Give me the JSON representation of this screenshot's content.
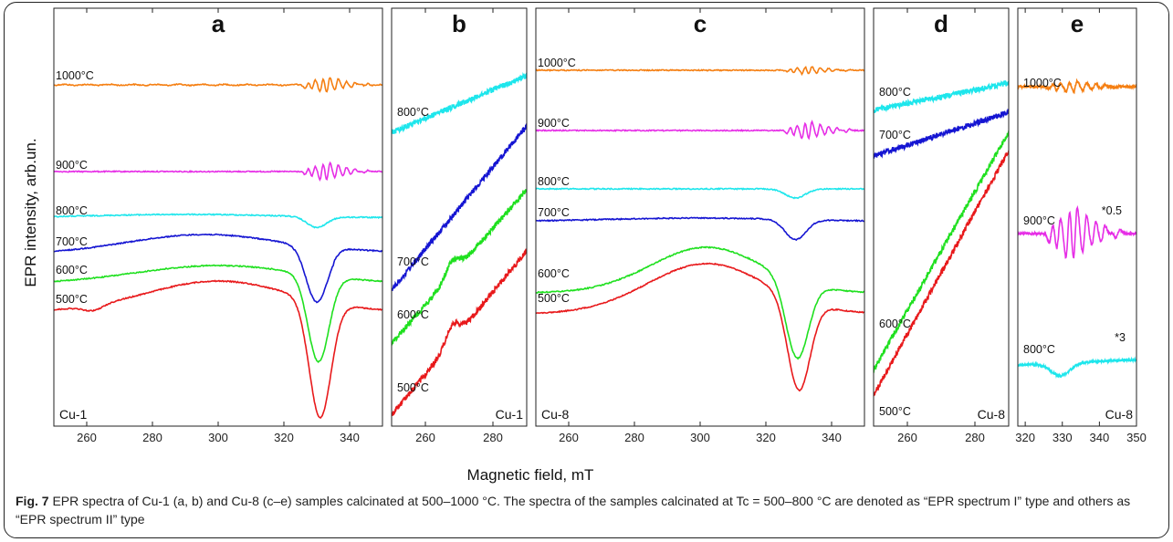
{
  "figure": {
    "caption_label": "Fig. 7",
    "caption_text": "EPR spectra of Cu-1 (a, b) and Cu-8 (c–e) samples calcinated at 500–1000 °C. The spectra of the samples calcinated at Tc = 500–800 °C are denoted as “EPR spectrum I” type and others as “EPR spectrum II” type",
    "ylabel": "EPR intensity, arb.un.",
    "xlabel": "Magnetic field, mT"
  },
  "colors": {
    "500": "#e8191b",
    "600": "#1fe01f",
    "700": "#1515d2",
    "800": "#1ee6ec",
    "900": "#e62ee6",
    "1000": "#f57f12"
  },
  "chart_data": [
    {
      "type": "line",
      "panel": "a",
      "sample": "Cu-1",
      "xlim": [
        250,
        350
      ],
      "xticks": [
        260,
        280,
        300,
        320,
        340
      ],
      "series": [
        {
          "name": "1000°C",
          "key": "1000"
        },
        {
          "name": "900°C",
          "key": "900"
        },
        {
          "name": "800°C",
          "key": "800"
        },
        {
          "name": "700°C",
          "key": "700"
        },
        {
          "name": "600°C",
          "key": "600"
        },
        {
          "name": "500°C",
          "key": "500"
        }
      ]
    },
    {
      "type": "line",
      "panel": "b",
      "sample": "Cu-1",
      "xlim": [
        250,
        290
      ],
      "xticks": [
        260,
        280
      ],
      "series": [
        {
          "name": "800°C",
          "key": "800"
        },
        {
          "name": "700°C",
          "key": "700"
        },
        {
          "name": "600°C",
          "key": "600"
        },
        {
          "name": "500°C",
          "key": "500"
        }
      ]
    },
    {
      "type": "line",
      "panel": "c",
      "sample": "Cu-8",
      "xlim": [
        250,
        350
      ],
      "xticks": [
        260,
        280,
        300,
        320,
        340
      ],
      "series": [
        {
          "name": "1000°C",
          "key": "1000"
        },
        {
          "name": "900°C",
          "key": "900"
        },
        {
          "name": "800°C",
          "key": "800"
        },
        {
          "name": "700°C",
          "key": "700"
        },
        {
          "name": "600°C",
          "key": "600"
        },
        {
          "name": "500°C",
          "key": "500"
        }
      ]
    },
    {
      "type": "line",
      "panel": "d",
      "sample": "Cu-8",
      "xlim": [
        250,
        290
      ],
      "xticks": [
        260,
        280
      ],
      "series": [
        {
          "name": "800°C",
          "key": "800"
        },
        {
          "name": "700°C",
          "key": "700"
        },
        {
          "name": "600°C",
          "key": "600"
        },
        {
          "name": "500°C",
          "key": "500"
        }
      ]
    },
    {
      "type": "line",
      "panel": "e",
      "sample": "Cu-8",
      "xlim": [
        318,
        350
      ],
      "xticks": [
        320,
        330,
        340,
        350
      ],
      "series": [
        {
          "name": "1000°C",
          "key": "1000"
        },
        {
          "name": "900°C",
          "key": "900",
          "scale_label": "*0.5"
        },
        {
          "name": "800°C",
          "key": "800",
          "scale_label": "*3"
        }
      ]
    }
  ]
}
